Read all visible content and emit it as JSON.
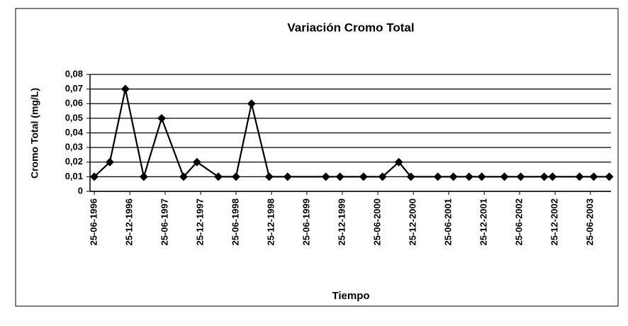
{
  "chart_data": {
    "type": "line",
    "title": "Variación Cromo Total",
    "x_label": "Tiempo",
    "y_label": "Cromo Total (mg/L)",
    "x": [
      "1996-06-25",
      "1996-09-13",
      "1996-12-02",
      "1997-03-07",
      "1997-06-07",
      "1997-09-28",
      "1997-12-06",
      "1998-03-26",
      "1998-06-25",
      "1998-09-13",
      "1998-12-13",
      "1999-03-18",
      "1999-10-01",
      "1999-12-13",
      "2000-04-12",
      "2000-07-19",
      "2000-10-11",
      "2000-12-12",
      "2001-04-30",
      "2001-07-19",
      "2001-10-08",
      "2001-12-12",
      "2002-04-08",
      "2002-07-01",
      "2002-10-30",
      "2002-12-12",
      "2003-04-30",
      "2003-07-12",
      "2003-09-30"
    ],
    "series": [
      {
        "color": "#000000",
        "values": [
          0.01,
          0.02,
          0.07,
          0.01,
          0.05,
          0.01,
          0.02,
          0.01,
          0.01,
          0.06,
          0.01,
          0.01,
          0.01,
          0.01,
          0.01,
          0.01,
          0.02,
          0.01,
          0.01,
          0.01,
          0.01,
          0.01,
          0.01,
          0.01,
          0.01,
          0.01,
          0.01,
          0.01,
          0.01
        ]
      }
    ],
    "xlim": [
      "1996-06-03",
      "2003-10-09"
    ],
    "xticks": [
      {
        "value": "1996-06-25",
        "label": "25-06-1996"
      },
      {
        "value": "1996-12-25",
        "label": "25-12-1996"
      },
      {
        "value": "1997-06-25",
        "label": "25-06-1997"
      },
      {
        "value": "1997-12-25",
        "label": "25-12-1997"
      },
      {
        "value": "1998-06-25",
        "label": "25-06-1998"
      },
      {
        "value": "1998-12-25",
        "label": "25-12-1998"
      },
      {
        "value": "1999-06-25",
        "label": "25-06-1999"
      },
      {
        "value": "1999-12-25",
        "label": "25-12-1999"
      },
      {
        "value": "2000-06-25",
        "label": "25-06-2000"
      },
      {
        "value": "2000-12-25",
        "label": "25-12-2000"
      },
      {
        "value": "2001-06-25",
        "label": "25-06-2001"
      },
      {
        "value": "2001-12-25",
        "label": "25-12-2001"
      },
      {
        "value": "2002-06-25",
        "label": "25-06-2002"
      },
      {
        "value": "2002-12-25",
        "label": "25-12-2002"
      },
      {
        "value": "2003-06-25",
        "label": "25-06-2003"
      }
    ],
    "ylim": [
      0,
      0.08
    ],
    "yticks": [
      0,
      {
        "value": 0.01,
        "label": "0,01"
      },
      {
        "value": 0.02,
        "label": "0,02"
      },
      {
        "value": 0.03,
        "label": "0,03"
      },
      {
        "value": 0.04,
        "label": "0,04"
      },
      {
        "value": 0.05,
        "label": "0,05"
      },
      {
        "value": 0.06,
        "label": "0,06"
      },
      {
        "value": 0.07,
        "label": "0,07"
      },
      {
        "value": 0.08,
        "label": "0,08"
      }
    ],
    "grid": true
  }
}
